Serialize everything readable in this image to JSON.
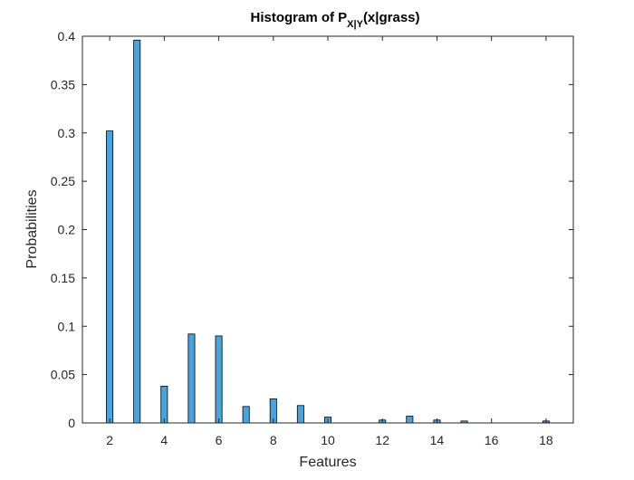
{
  "chart_data": {
    "type": "bar",
    "title": {
      "prefix": "Histogram of P",
      "subscript": "X|Y",
      "suffix": "(x|grass)"
    },
    "xlabel": "Features",
    "ylabel": "Probabilities",
    "xlim": [
      1,
      19
    ],
    "ylim": [
      0,
      0.4
    ],
    "xticks": [
      "2",
      "4",
      "6",
      "8",
      "10",
      "12",
      "14",
      "16",
      "18"
    ],
    "yticks": [
      "0",
      "0.05",
      "0.1",
      "0.15",
      "0.2",
      "0.25",
      "0.3",
      "0.35",
      "0.4"
    ],
    "grid": false,
    "bar_color": "#4da3d9",
    "edge_color": "#000000",
    "x": [
      2,
      3,
      4,
      5,
      6,
      7,
      8,
      9,
      10,
      11,
      12,
      13,
      14,
      15,
      16,
      17,
      18
    ],
    "values": [
      0.302,
      0.396,
      0.038,
      0.092,
      0.09,
      0.017,
      0.025,
      0.018,
      0.006,
      0.0,
      0.003,
      0.007,
      0.003,
      0.002,
      0.0,
      0.0,
      0.002
    ]
  }
}
